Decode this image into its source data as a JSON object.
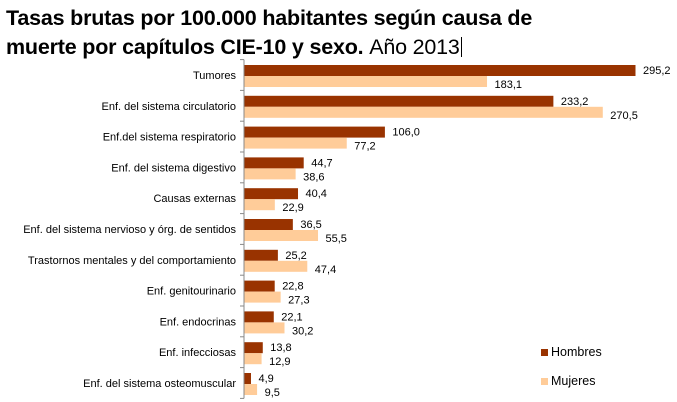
{
  "title_line1": "Tasas brutas por 100.000 habitantes según causa de",
  "title_line2": "muerte por capítulos CIE-10 y sexo.",
  "title_year": "Año 2013",
  "colors": {
    "hombres": "#993300",
    "mujeres": "#FFCC99"
  },
  "chart_data": {
    "type": "bar",
    "orientation": "horizontal",
    "title": "Tasas brutas por 100.000 habitantes según causa de muerte por capítulos CIE-10 y sexo. Año 2013",
    "categories": [
      "Tumores",
      "Enf. del sistema circulatorio",
      "Enf.del sistema respiratorio",
      "Enf. del sistema digestivo",
      "Causas externas",
      "Enf. del sistema nervioso y órg. de sentidos",
      "Trastornos mentales y del comportamiento",
      "Enf. genitourinario",
      "Enf. endocrinas",
      "Enf. infecciosas",
      "Enf. del sistema osteomuscular"
    ],
    "series": [
      {
        "name": "Hombres",
        "values": [
          295.2,
          233.2,
          106.0,
          44.7,
          40.4,
          36.5,
          25.2,
          22.8,
          22.1,
          13.8,
          4.9
        ],
        "labels": [
          "295,2",
          "233,2",
          "106,0",
          "44,7",
          "40,4",
          "36,5",
          "25,2",
          "22,8",
          "22,1",
          "13,8",
          "4,9"
        ]
      },
      {
        "name": "Mujeres",
        "values": [
          183.1,
          270.5,
          77.2,
          38.6,
          22.9,
          55.5,
          47.4,
          27.3,
          30.2,
          12.9,
          9.5
        ],
        "labels": [
          "183,1",
          "270,5",
          "77,2",
          "38,6",
          "22,9",
          "55,5",
          "47,4",
          "27,3",
          "30,2",
          "12,9",
          "9,5"
        ]
      }
    ],
    "xlim": [
      0,
      300
    ],
    "grid": false,
    "legend": "bottom-right"
  }
}
